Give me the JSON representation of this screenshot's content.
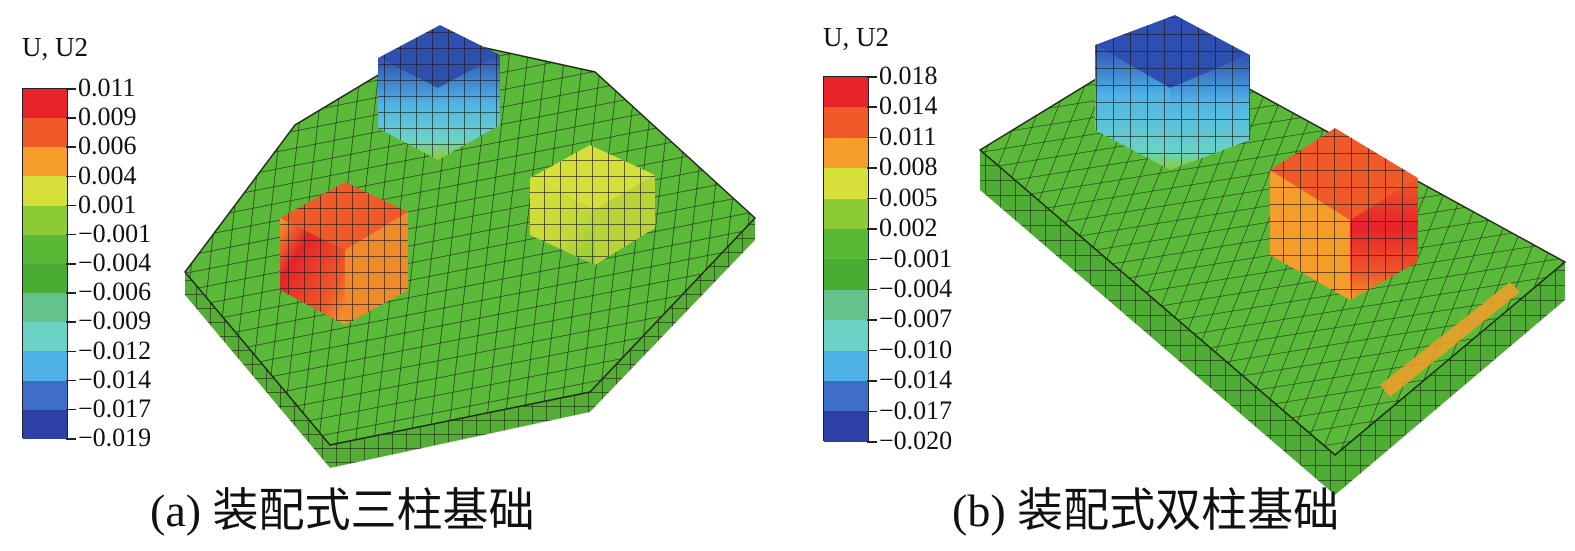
{
  "panels": [
    {
      "caption": "(a) 装配式三柱基础",
      "legend": {
        "title": "U, U2",
        "labels": [
          "0.011",
          "0.009",
          "0.006",
          "0.004",
          "0.001",
          "−0.001",
          "−0.004",
          "−0.006",
          "−0.009",
          "−0.012",
          "−0.014",
          "−0.017",
          "−0.019"
        ]
      }
    },
    {
      "caption": "(b) 装配式双柱基础",
      "legend": {
        "title": "U, U2",
        "labels": [
          "0.018",
          "0.014",
          "0.011",
          "0.008",
          "0.005",
          "0.002",
          "−0.001",
          "−0.004",
          "−0.007",
          "−0.010",
          "−0.014",
          "−0.017",
          "−0.020"
        ]
      }
    }
  ],
  "colors": {
    "scale": [
      "#e8222a",
      "#ef5a28",
      "#f59d2a",
      "#d7e03a",
      "#8ccb34",
      "#58b936",
      "#4aad33",
      "#63c38a",
      "#6ad3c6",
      "#4fb2e6",
      "#3d6fc8",
      "#2f3fa8"
    ],
    "mesh_green": "#5bb93a",
    "mesh_line": "#1c2a12"
  }
}
